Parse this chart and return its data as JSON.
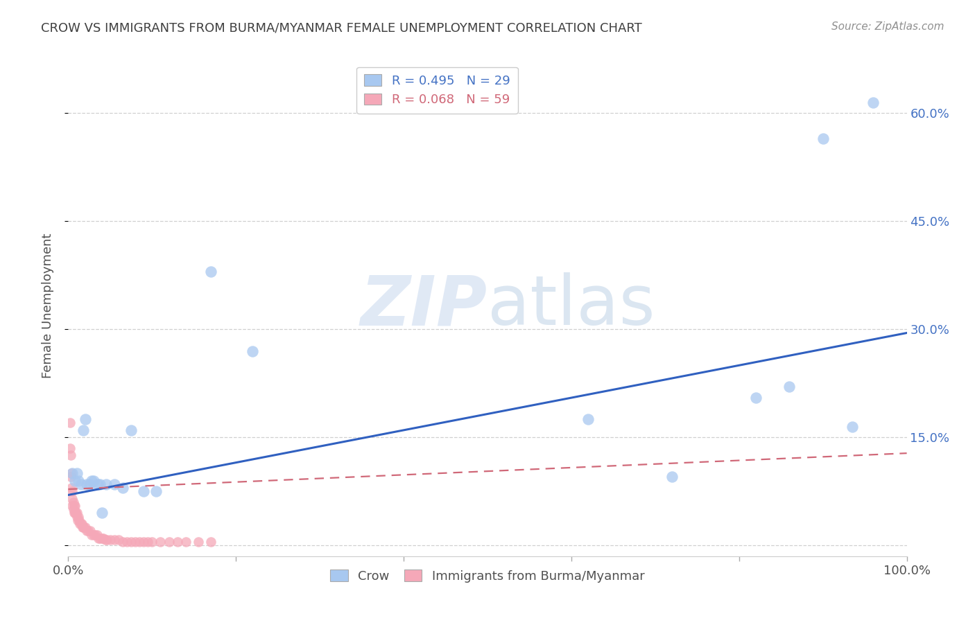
{
  "title": "CROW VS IMMIGRANTS FROM BURMA/MYANMAR FEMALE UNEMPLOYMENT CORRELATION CHART",
  "source": "Source: ZipAtlas.com",
  "ylabel": "Female Unemployment",
  "yticks": [
    0.0,
    0.15,
    0.3,
    0.45,
    0.6
  ],
  "ytick_labels": [
    "",
    "15.0%",
    "30.0%",
    "45.0%",
    "60.0%"
  ],
  "xmin": 0.0,
  "xmax": 1.0,
  "ymin": -0.015,
  "ymax": 0.68,
  "crow_R": 0.495,
  "crow_N": 29,
  "burma_R": 0.068,
  "burma_N": 59,
  "crow_color": "#a8c8f0",
  "burma_color": "#f5a8b8",
  "crow_line_color": "#3060c0",
  "burma_line_color": "#d06878",
  "crow_x": [
    0.005,
    0.008,
    0.01,
    0.012,
    0.015,
    0.018,
    0.02,
    0.022,
    0.025,
    0.028,
    0.03,
    0.035,
    0.038,
    0.04,
    0.045,
    0.055,
    0.065,
    0.075,
    0.09,
    0.105,
    0.17,
    0.22,
    0.62,
    0.72,
    0.82,
    0.86,
    0.9,
    0.935,
    0.96
  ],
  "crow_y": [
    0.1,
    0.09,
    0.1,
    0.09,
    0.085,
    0.16,
    0.175,
    0.085,
    0.085,
    0.09,
    0.09,
    0.085,
    0.085,
    0.045,
    0.085,
    0.085,
    0.08,
    0.16,
    0.075,
    0.075,
    0.38,
    0.27,
    0.175,
    0.095,
    0.205,
    0.22,
    0.565,
    0.165,
    0.615
  ],
  "burma_x": [
    0.002,
    0.002,
    0.003,
    0.003,
    0.004,
    0.004,
    0.005,
    0.005,
    0.005,
    0.006,
    0.006,
    0.007,
    0.007,
    0.008,
    0.008,
    0.009,
    0.009,
    0.01,
    0.01,
    0.011,
    0.012,
    0.013,
    0.014,
    0.015,
    0.016,
    0.017,
    0.018,
    0.019,
    0.02,
    0.022,
    0.024,
    0.026,
    0.028,
    0.03,
    0.032,
    0.034,
    0.036,
    0.038,
    0.04,
    0.042,
    0.044,
    0.046,
    0.05,
    0.055,
    0.06,
    0.065,
    0.07,
    0.075,
    0.08,
    0.085,
    0.09,
    0.095,
    0.1,
    0.11,
    0.12,
    0.13,
    0.14,
    0.155,
    0.17
  ],
  "burma_y": [
    0.17,
    0.135,
    0.125,
    0.095,
    0.1,
    0.08,
    0.075,
    0.065,
    0.055,
    0.06,
    0.05,
    0.055,
    0.045,
    0.055,
    0.045,
    0.045,
    0.045,
    0.045,
    0.04,
    0.035,
    0.04,
    0.035,
    0.03,
    0.03,
    0.03,
    0.025,
    0.025,
    0.025,
    0.025,
    0.02,
    0.02,
    0.02,
    0.015,
    0.015,
    0.015,
    0.015,
    0.01,
    0.01,
    0.01,
    0.01,
    0.008,
    0.008,
    0.008,
    0.008,
    0.008,
    0.005,
    0.005,
    0.005,
    0.005,
    0.005,
    0.005,
    0.005,
    0.005,
    0.005,
    0.005,
    0.005,
    0.005,
    0.005,
    0.005
  ],
  "crow_line_x": [
    0.0,
    1.0
  ],
  "crow_line_y": [
    0.07,
    0.295
  ],
  "burma_line_x": [
    0.0,
    1.0
  ],
  "burma_line_y": [
    0.078,
    0.128
  ],
  "watermark_zip": "ZIP",
  "watermark_atlas": "atlas",
  "background_color": "#ffffff",
  "grid_color": "#d0d0d0",
  "title_color": "#404040",
  "source_color": "#909090",
  "ylabel_color": "#505050",
  "tick_color": "#505050",
  "right_tick_color": "#4472c4",
  "legend_text_color1": "#4472c4",
  "legend_text_color2": "#d06878"
}
